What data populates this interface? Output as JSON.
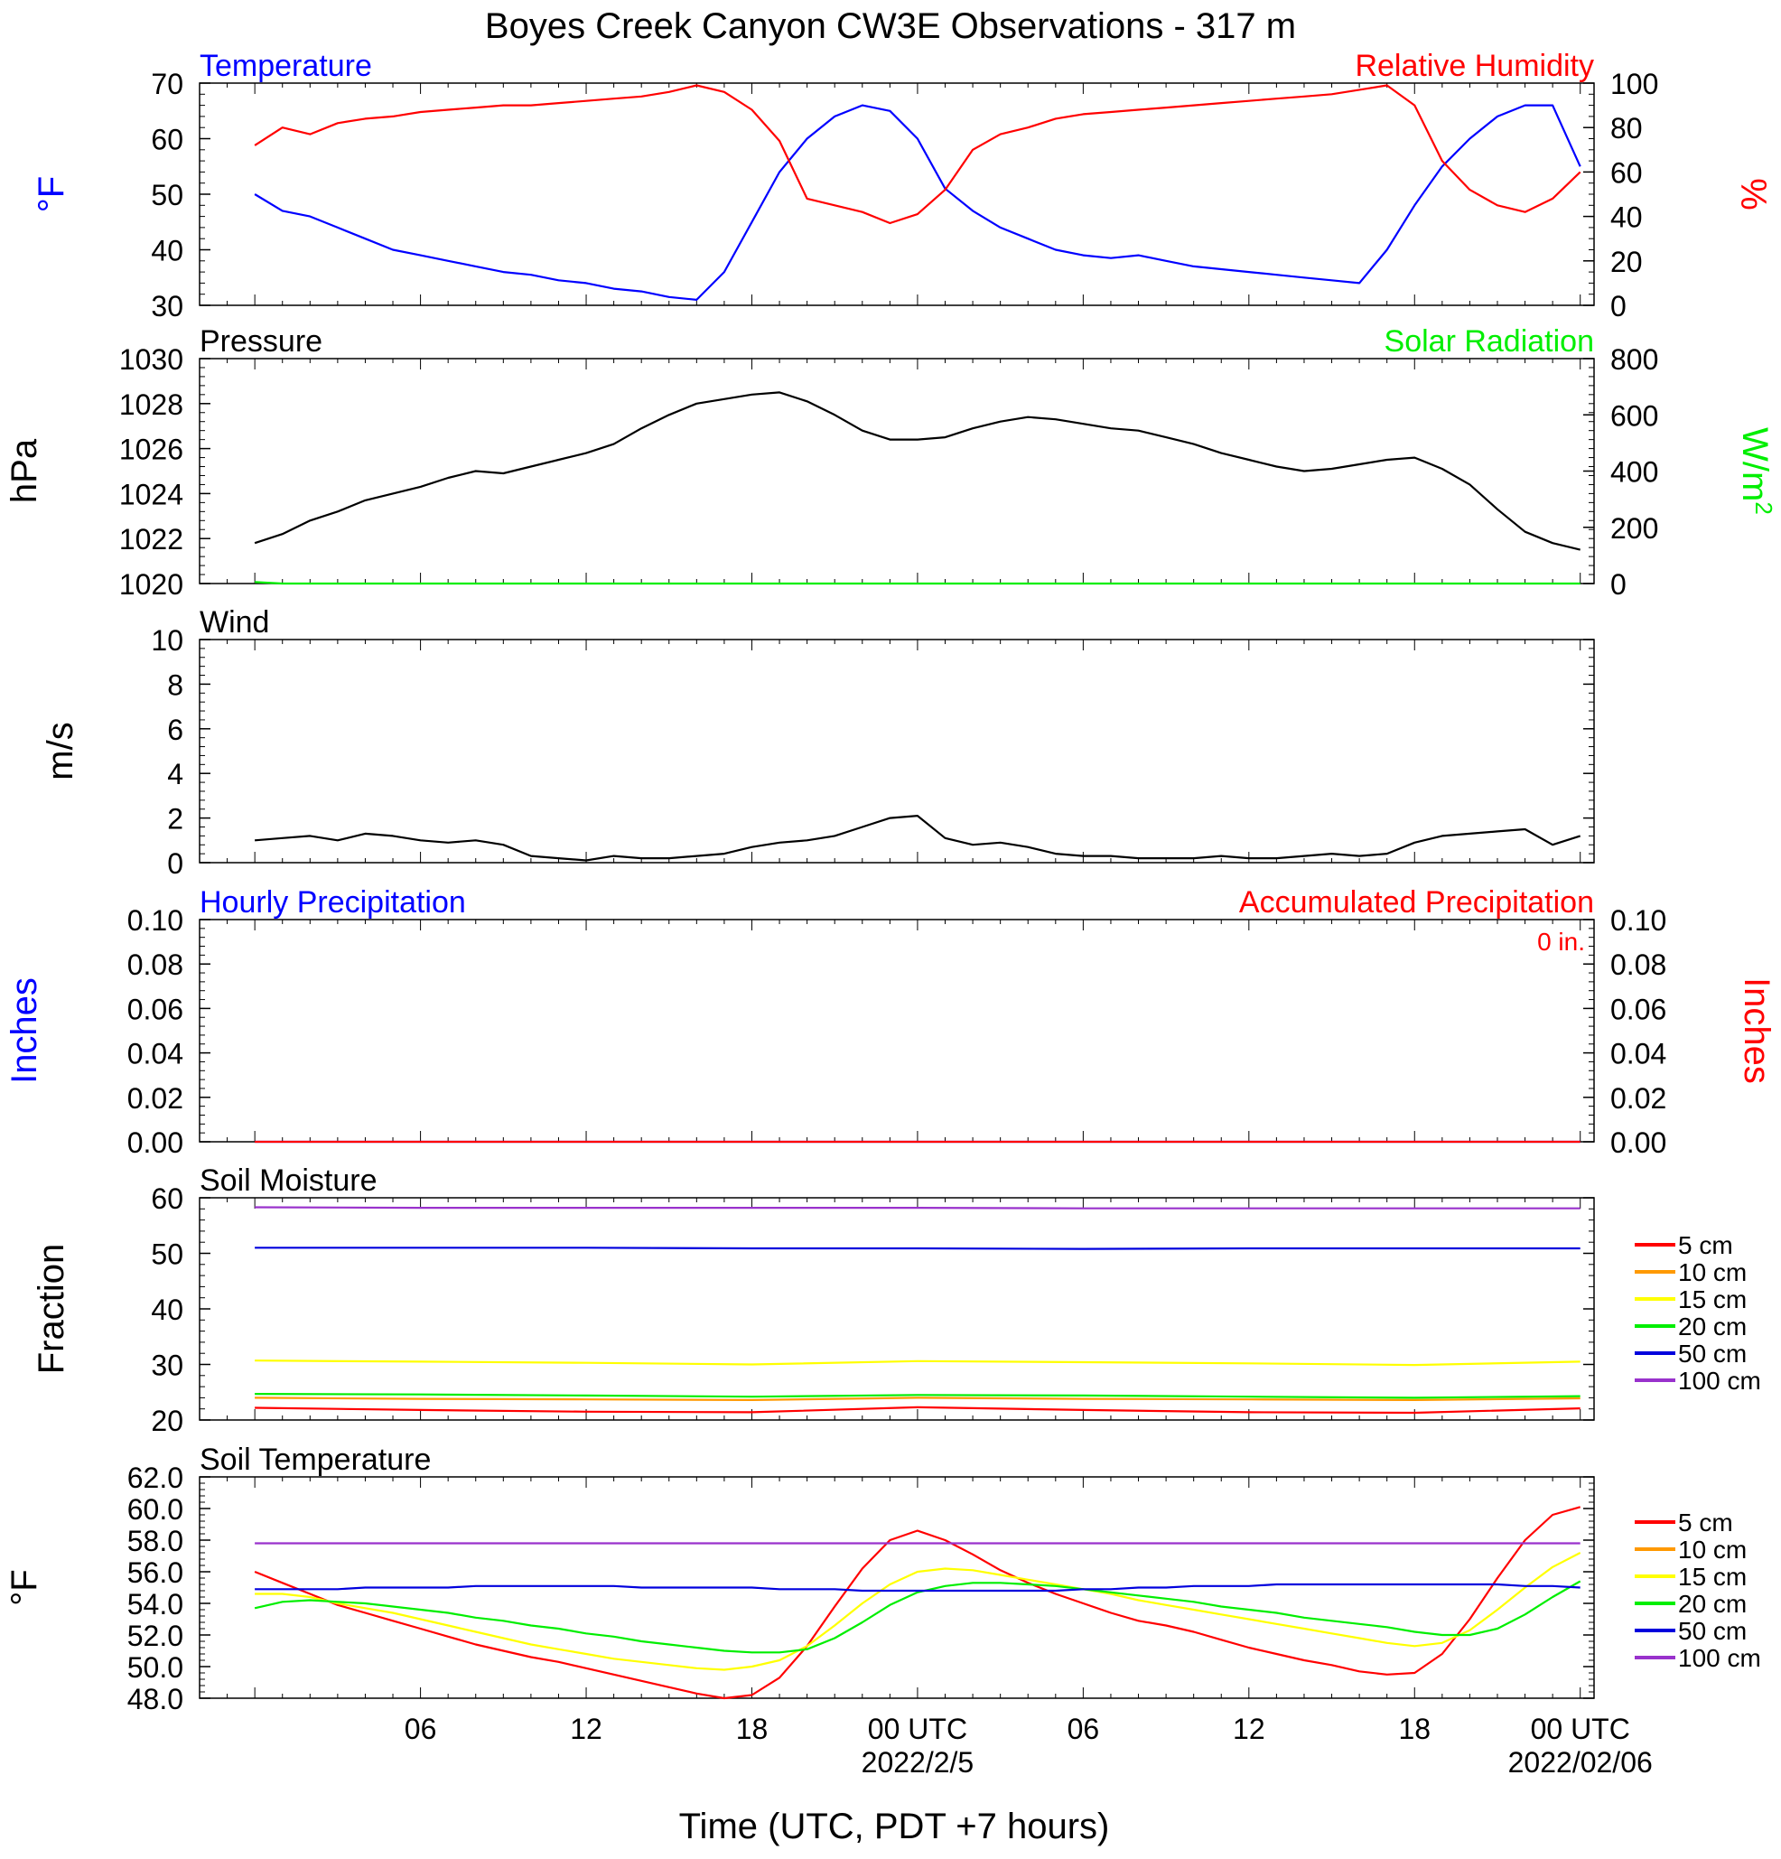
{
  "title": "Boyes Creek Canyon CW3E Observations - 317 m",
  "xlabel": "Time (UTC, PDT +7 hours)",
  "x_ticks": [
    "06",
    "12",
    "18",
    "00 UTC",
    "06",
    "12",
    "18",
    "00 UTC"
  ],
  "x_dates": [
    "2022/2/5",
    "2022/02/06"
  ],
  "soil_legend": {
    "labels": [
      "5 cm",
      "10 cm",
      "15 cm",
      "20 cm",
      "50 cm",
      "100 cm"
    ],
    "colors": [
      "#ff0000",
      "#ff9900",
      "#ffff00",
      "#00ee00",
      "#0000dd",
      "#9932cc"
    ]
  },
  "chart_data": [
    {
      "type": "line",
      "panel": "temperature_rh",
      "title_left": "Temperature",
      "title_right": "Relative Humidity",
      "ylabel_left": "°F",
      "ylabel_right": "%",
      "ylim_left": [
        30,
        70
      ],
      "ylim_right": [
        0,
        100
      ],
      "yticks_left": [
        "30",
        "40",
        "50",
        "60",
        "70"
      ],
      "yticks_right": [
        "0",
        "20",
        "40",
        "60",
        "80",
        "100"
      ],
      "x_hours": [
        0,
        1,
        2,
        3,
        4,
        5,
        6,
        7,
        8,
        9,
        10,
        11,
        12,
        13,
        14,
        15,
        16,
        17,
        18,
        19,
        20,
        21,
        22,
        23,
        24,
        25,
        26,
        27,
        28,
        29,
        30,
        31,
        32,
        33,
        34,
        35,
        36,
        37,
        38,
        39,
        40,
        41,
        42,
        43,
        44,
        45,
        46,
        47,
        48
      ],
      "series": [
        {
          "name": "Temperature",
          "axis": "left",
          "color": "#0000ff",
          "values": [
            50,
            47,
            46,
            44,
            42,
            40,
            39,
            38,
            37,
            36,
            35.5,
            34.5,
            34,
            33,
            32.5,
            31.5,
            31,
            36,
            45,
            54,
            60,
            64,
            66,
            65,
            60,
            51,
            47,
            44,
            42,
            40,
            39,
            38.5,
            39,
            38,
            37,
            36.5,
            36,
            35.5,
            35,
            34.5,
            34,
            40,
            48,
            55,
            60,
            64,
            66,
            66,
            55
          ]
        },
        {
          "name": "Relative Humidity",
          "axis": "right",
          "color": "#ff0000",
          "values": [
            72,
            80,
            77,
            82,
            84,
            85,
            87,
            88,
            89,
            90,
            90,
            91,
            92,
            93,
            94,
            96,
            99,
            96,
            88,
            74,
            48,
            45,
            42,
            37,
            41,
            52,
            70,
            77,
            80,
            84,
            86,
            87,
            88,
            89,
            90,
            91,
            92,
            93,
            94,
            95,
            97,
            99,
            90,
            65,
            52,
            45,
            42,
            48,
            60
          ]
        }
      ]
    },
    {
      "type": "line",
      "panel": "pressure_solar",
      "title_left": "Pressure",
      "title_right": "Solar Radiation",
      "ylabel_left": "hPa",
      "ylabel_right": "W/m",
      "ylabel_right_sup": "2",
      "ylim_left": [
        1020,
        1030
      ],
      "ylim_right": [
        0,
        800
      ],
      "yticks_left": [
        "1020",
        "1022",
        "1024",
        "1026",
        "1028",
        "1030"
      ],
      "yticks_right": [
        "0",
        "200",
        "400",
        "600",
        "800"
      ],
      "x_hours": [
        0,
        1,
        2,
        3,
        4,
        5,
        6,
        7,
        8,
        9,
        10,
        11,
        12,
        13,
        14,
        15,
        16,
        17,
        18,
        19,
        20,
        21,
        22,
        23,
        24,
        25,
        26,
        27,
        28,
        29,
        30,
        31,
        32,
        33,
        34,
        35,
        36,
        37,
        38,
        39,
        40,
        41,
        42,
        43,
        44,
        45,
        46,
        47,
        48
      ],
      "series": [
        {
          "name": "Pressure",
          "axis": "left",
          "color": "#000000",
          "values": [
            1021.8,
            1022.2,
            1022.8,
            1023.2,
            1023.7,
            1024,
            1024.3,
            1024.7,
            1025,
            1024.9,
            1025.2,
            1025.5,
            1025.8,
            1026.2,
            1026.9,
            1027.5,
            1028,
            1028.2,
            1028.4,
            1028.5,
            1028.1,
            1027.5,
            1026.8,
            1026.4,
            1026.4,
            1026.5,
            1026.9,
            1027.2,
            1027.4,
            1027.3,
            1027.1,
            1026.9,
            1026.8,
            1026.5,
            1026.2,
            1025.8,
            1025.5,
            1025.2,
            1025,
            1025.1,
            1025.3,
            1025.5,
            1025.6,
            1025.1,
            1024.4,
            1023.3,
            1022.3,
            1021.8,
            1021.5
          ]
        },
        {
          "name": "Solar Radiation",
          "axis": "right",
          "color": "#00ee00",
          "values": [
            5,
            0,
            0,
            0,
            0,
            0,
            0,
            0,
            0,
            0,
            0,
            0,
            0,
            0,
            0,
            0,
            0,
            0,
            0,
            0,
            0,
            0,
            0,
            0,
            0,
            0,
            0,
            0,
            0,
            0,
            0,
            0,
            0,
            0,
            0,
            0,
            0,
            0,
            0,
            0,
            0,
            0,
            0,
            0,
            0,
            0,
            0,
            0,
            0
          ]
        }
      ]
    },
    {
      "type": "line",
      "panel": "wind",
      "title_left": "Wind",
      "ylabel_left": "m/s",
      "ylim_left": [
        0,
        10
      ],
      "yticks_left": [
        "0",
        "2",
        "4",
        "6",
        "8",
        "10"
      ],
      "x_hours": [
        0,
        1,
        2,
        3,
        4,
        5,
        6,
        7,
        8,
        9,
        10,
        11,
        12,
        13,
        14,
        15,
        16,
        17,
        18,
        19,
        20,
        21,
        22,
        23,
        24,
        25,
        26,
        27,
        28,
        29,
        30,
        31,
        32,
        33,
        34,
        35,
        36,
        37,
        38,
        39,
        40,
        41,
        42,
        43,
        44,
        45,
        46,
        47,
        48
      ],
      "series": [
        {
          "name": "Wind speed",
          "axis": "left",
          "color": "#000000",
          "values": [
            1.0,
            1.1,
            1.2,
            1.0,
            1.3,
            1.2,
            1.0,
            0.9,
            1.0,
            0.8,
            0.3,
            0.2,
            0.1,
            0.3,
            0.2,
            0.2,
            0.3,
            0.4,
            0.7,
            0.9,
            1.0,
            1.2,
            1.6,
            2.0,
            2.1,
            1.1,
            0.8,
            0.9,
            0.7,
            0.4,
            0.3,
            0.3,
            0.2,
            0.2,
            0.2,
            0.3,
            0.2,
            0.2,
            0.3,
            0.4,
            0.3,
            0.4,
            0.9,
            1.2,
            1.3,
            1.4,
            1.5,
            0.8,
            1.2
          ]
        }
      ]
    },
    {
      "type": "line",
      "panel": "precipitation",
      "title_left": "Hourly Precipitation",
      "title_right": "Accumulated Precipitation",
      "annotation": "0 in.",
      "ylabel_left": "Inches",
      "ylabel_right": "Inches",
      "ylim_left": [
        0,
        0.1
      ],
      "ylim_right": [
        0,
        0.1
      ],
      "yticks_left": [
        "0.00",
        "0.02",
        "0.04",
        "0.06",
        "0.08",
        "0.10"
      ],
      "yticks_right": [
        "0.00",
        "0.02",
        "0.04",
        "0.06",
        "0.08",
        "0.10"
      ],
      "x_hours": [
        0,
        48
      ],
      "series": [
        {
          "name": "Hourly Precipitation",
          "axis": "left",
          "color": "#0000ff",
          "values": [
            0,
            0
          ]
        },
        {
          "name": "Accumulated Precipitation",
          "axis": "right",
          "color": "#ff0000",
          "values": [
            0,
            0
          ]
        }
      ]
    },
    {
      "type": "line",
      "panel": "soil_moisture",
      "title_left": "Soil Moisture",
      "ylabel_left": "Fraction",
      "ylim_left": [
        20,
        60
      ],
      "yticks_left": [
        "20",
        "30",
        "40",
        "50",
        "60"
      ],
      "x_hours": [
        0,
        6,
        12,
        18,
        24,
        30,
        36,
        42,
        48
      ],
      "series": [
        {
          "name": "5 cm",
          "color": "#ff0000",
          "values": [
            22.2,
            21.8,
            21.5,
            21.4,
            22.3,
            21.8,
            21.4,
            21.3,
            22.1
          ]
        },
        {
          "name": "10 cm",
          "color": "#ff9900",
          "values": [
            24.0,
            23.8,
            23.7,
            23.6,
            24.0,
            23.8,
            23.7,
            23.6,
            23.9
          ]
        },
        {
          "name": "15 cm",
          "color": "#ffff00",
          "values": [
            30.7,
            30.5,
            30.3,
            30.0,
            30.6,
            30.4,
            30.2,
            29.9,
            30.5
          ]
        },
        {
          "name": "20 cm",
          "color": "#00ee00",
          "values": [
            24.7,
            24.6,
            24.4,
            24.2,
            24.5,
            24.4,
            24.2,
            24.0,
            24.3
          ]
        },
        {
          "name": "50 cm",
          "color": "#0000dd",
          "values": [
            51.0,
            51.0,
            51.0,
            50.9,
            50.9,
            50.8,
            50.9,
            50.9,
            50.9
          ]
        },
        {
          "name": "100 cm",
          "color": "#9932cc",
          "values": [
            58.3,
            58.2,
            58.2,
            58.2,
            58.2,
            58.1,
            58.1,
            58.1,
            58.1
          ]
        }
      ]
    },
    {
      "type": "line",
      "panel": "soil_temperature",
      "title_left": "Soil Temperature",
      "ylabel_left": "°F",
      "ylim_left": [
        48,
        62
      ],
      "yticks_left": [
        "48.0",
        "50.0",
        "52.0",
        "54.0",
        "56.0",
        "58.0",
        "60.0",
        "62.0"
      ],
      "x_hours": [
        0,
        1,
        2,
        3,
        4,
        5,
        6,
        7,
        8,
        9,
        10,
        11,
        12,
        13,
        14,
        15,
        16,
        17,
        18,
        19,
        20,
        21,
        22,
        23,
        24,
        25,
        26,
        27,
        28,
        29,
        30,
        31,
        32,
        33,
        34,
        35,
        36,
        37,
        38,
        39,
        40,
        41,
        42,
        43,
        44,
        45,
        46,
        47,
        48
      ],
      "series": [
        {
          "name": "5 cm",
          "color": "#ff0000",
          "values": [
            56.0,
            55.3,
            54.6,
            53.9,
            53.4,
            52.9,
            52.4,
            51.9,
            51.4,
            51.0,
            50.6,
            50.3,
            49.9,
            49.5,
            49.1,
            48.7,
            48.3,
            48.0,
            48.2,
            49.3,
            51.3,
            53.8,
            56.2,
            58.0,
            58.6,
            58.0,
            57.1,
            56.1,
            55.3,
            54.6,
            54.0,
            53.4,
            52.9,
            52.6,
            52.2,
            51.7,
            51.2,
            50.8,
            50.4,
            50.1,
            49.7,
            49.5,
            49.6,
            50.8,
            53.0,
            55.6,
            58.0,
            59.6,
            60.1
          ]
        },
        {
          "name": "10 cm",
          "color": "#ff9900",
          "values": []
        },
        {
          "name": "15 cm",
          "color": "#ffff00",
          "values": [
            54.6,
            54.6,
            54.4,
            54.0,
            53.7,
            53.4,
            53.0,
            52.6,
            52.2,
            51.8,
            51.4,
            51.1,
            50.8,
            50.5,
            50.3,
            50.1,
            49.9,
            49.8,
            50.0,
            50.4,
            51.3,
            52.6,
            54.0,
            55.2,
            56.0,
            56.2,
            56.1,
            55.8,
            55.5,
            55.2,
            54.9,
            54.6,
            54.2,
            53.9,
            53.6,
            53.3,
            53.0,
            52.7,
            52.4,
            52.1,
            51.8,
            51.5,
            51.3,
            51.5,
            52.3,
            53.6,
            55.0,
            56.3,
            57.2
          ]
        },
        {
          "name": "20 cm",
          "color": "#00ee00",
          "values": [
            53.7,
            54.1,
            54.2,
            54.1,
            54.0,
            53.8,
            53.6,
            53.4,
            53.1,
            52.9,
            52.6,
            52.4,
            52.1,
            51.9,
            51.6,
            51.4,
            51.2,
            51.0,
            50.9,
            50.9,
            51.1,
            51.8,
            52.8,
            53.9,
            54.7,
            55.1,
            55.3,
            55.3,
            55.2,
            55.1,
            54.9,
            54.7,
            54.5,
            54.3,
            54.1,
            53.8,
            53.6,
            53.4,
            53.1,
            52.9,
            52.7,
            52.5,
            52.2,
            52.0,
            52.0,
            52.4,
            53.3,
            54.4,
            55.4
          ]
        },
        {
          "name": "50 cm",
          "color": "#0000dd",
          "values": [
            54.9,
            54.9,
            54.9,
            54.9,
            55.0,
            55.0,
            55.0,
            55.0,
            55.1,
            55.1,
            55.1,
            55.1,
            55.1,
            55.1,
            55.0,
            55.0,
            55.0,
            55.0,
            55.0,
            54.9,
            54.9,
            54.9,
            54.8,
            54.8,
            54.8,
            54.8,
            54.8,
            54.8,
            54.8,
            54.8,
            54.9,
            54.9,
            55.0,
            55.0,
            55.1,
            55.1,
            55.1,
            55.2,
            55.2,
            55.2,
            55.2,
            55.2,
            55.2,
            55.2,
            55.2,
            55.2,
            55.1,
            55.1,
            55.0
          ]
        },
        {
          "name": "100 cm",
          "color": "#9932cc",
          "values": [
            57.8,
            57.8,
            57.8,
            57.8,
            57.8,
            57.8,
            57.8,
            57.8,
            57.8,
            57.8,
            57.8,
            57.8,
            57.8,
            57.8,
            57.8,
            57.8,
            57.8,
            57.8,
            57.8,
            57.8,
            57.8,
            57.8,
            57.8,
            57.8,
            57.8,
            57.8,
            57.8,
            57.8,
            57.8,
            57.8,
            57.8,
            57.8,
            57.8,
            57.8,
            57.8,
            57.8,
            57.8,
            57.8,
            57.8,
            57.8,
            57.8,
            57.8,
            57.8,
            57.8,
            57.8,
            57.8,
            57.8,
            57.8,
            57.8
          ]
        }
      ]
    }
  ]
}
